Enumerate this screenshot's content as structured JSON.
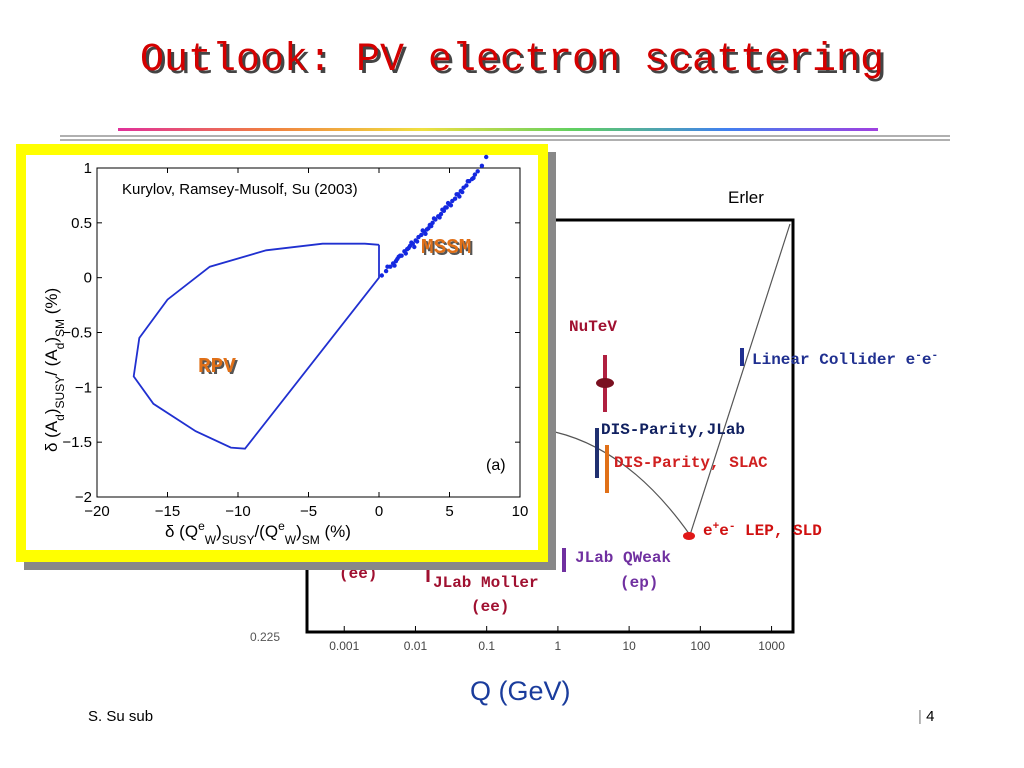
{
  "slide": {
    "title": "Outlook:  PV electron scattering",
    "footer_left": "S. Su  sub",
    "footer_right": "4"
  },
  "colors": {
    "title_red": "#d40000",
    "inset_border_yellow": "#ffff00",
    "points_blue": "#1428e0",
    "contour_blue": "#2030d0",
    "label_orange": "#e07018",
    "label_dark_red": "#a01030",
    "label_purple": "#7030a0",
    "label_blue": "#203090",
    "label_dark": "#102060"
  },
  "background_plot": {
    "credit": "Erler",
    "xlabel": "Q (GeV)",
    "y_tick_label": "0.225",
    "x_scale": "log",
    "xlim": [
      0.0003,
      2000
    ],
    "x_ticks": [
      {
        "v": 0.001,
        "label": "0.001"
      },
      {
        "v": 0.01,
        "label": "0.01"
      },
      {
        "v": 0.1,
        "label": "0.1"
      },
      {
        "v": 1,
        "label": "1"
      },
      {
        "v": 10,
        "label": "10"
      },
      {
        "v": 100,
        "label": "100"
      },
      {
        "v": 1000,
        "label": "1000"
      }
    ],
    "labels": {
      "nutev": "NuTeV",
      "linear_collider": "Linear  Collider e",
      "dis_jlab": "DIS-Parity,JLab",
      "dis_slac": "DIS-Parity, SLAC",
      "lep_sld": "e",
      "lep_sld_rest": " LEP, SLD",
      "jlab_qweak": "JLab QWeak",
      "qweak_ep": "(ep)",
      "jlab_moller": "JLab Moller",
      "moller_ee": "(ee)",
      "e158_ee": "(ee)"
    }
  },
  "chart_data": {
    "type": "scatter",
    "title": "Kurylov, Ramsey-Musolf, Su (2003)",
    "xlabel": "δ (QeW)SUSY/(QeW)SM   (%)",
    "ylabel": "δ (Ad)SUSY/ (Ad)SM    (%)",
    "panel_label": "(a)",
    "xlim": [
      -20,
      10
    ],
    "ylim": [
      -2,
      1
    ],
    "x_ticks": [
      -20,
      -15,
      -10,
      -5,
      0,
      5,
      10
    ],
    "x_tick_labels": [
      "−20",
      "−15",
      "−10",
      "−5",
      "0",
      "5",
      "10"
    ],
    "y_ticks": [
      1,
      0.5,
      0,
      -0.5,
      -1,
      -1.5,
      -2
    ],
    "y_tick_labels": [
      "1",
      "0.5",
      "0",
      "−0.5",
      "−1",
      "−1.5",
      "−2"
    ],
    "grid": false,
    "series": [
      {
        "name": "MSSM",
        "kind": "points",
        "band_x": [
          0,
          7.5
        ],
        "band_y": [
          0,
          1.1
        ],
        "points": [
          [
            0.2,
            0.02
          ],
          [
            0.5,
            0.06
          ],
          [
            0.8,
            0.1
          ],
          [
            1.0,
            0.13
          ],
          [
            1.2,
            0.15
          ],
          [
            1.4,
            0.19
          ],
          [
            1.6,
            0.2
          ],
          [
            1.8,
            0.24
          ],
          [
            2.0,
            0.26
          ],
          [
            2.2,
            0.29
          ],
          [
            2.4,
            0.31
          ],
          [
            2.6,
            0.34
          ],
          [
            2.8,
            0.37
          ],
          [
            3.0,
            0.39
          ],
          [
            3.2,
            0.42
          ],
          [
            3.4,
            0.44
          ],
          [
            3.6,
            0.48
          ],
          [
            3.8,
            0.5
          ],
          [
            4.0,
            0.53
          ],
          [
            4.2,
            0.56
          ],
          [
            4.4,
            0.58
          ],
          [
            4.6,
            0.61
          ],
          [
            4.8,
            0.64
          ],
          [
            5.0,
            0.67
          ],
          [
            5.2,
            0.7
          ],
          [
            5.4,
            0.72
          ],
          [
            5.6,
            0.76
          ],
          [
            5.8,
            0.79
          ],
          [
            6.0,
            0.82
          ],
          [
            6.2,
            0.84
          ],
          [
            6.4,
            0.88
          ],
          [
            6.6,
            0.9
          ],
          [
            6.8,
            0.94
          ],
          [
            7.0,
            0.97
          ],
          [
            7.3,
            1.02
          ],
          [
            7.6,
            1.1
          ],
          [
            0.6,
            0.1
          ],
          [
            1.1,
            0.11
          ],
          [
            1.5,
            0.2
          ],
          [
            1.9,
            0.22
          ],
          [
            2.3,
            0.32
          ],
          [
            2.7,
            0.33
          ],
          [
            3.1,
            0.43
          ],
          [
            3.5,
            0.45
          ],
          [
            3.9,
            0.54
          ],
          [
            4.3,
            0.55
          ],
          [
            4.7,
            0.64
          ],
          [
            5.1,
            0.66
          ],
          [
            5.5,
            0.76
          ],
          [
            5.9,
            0.78
          ],
          [
            6.3,
            0.88
          ],
          [
            6.7,
            0.91
          ],
          [
            2.5,
            0.28
          ],
          [
            3.3,
            0.4
          ],
          [
            4.5,
            0.62
          ],
          [
            5.7,
            0.74
          ],
          [
            1.3,
            0.17
          ],
          [
            2.1,
            0.27
          ],
          [
            3.7,
            0.47
          ],
          [
            4.9,
            0.68
          ]
        ]
      },
      {
        "name": "RPV",
        "kind": "region",
        "boundary": [
          [
            0,
            0.3
          ],
          [
            -1,
            0.31
          ],
          [
            -4,
            0.31
          ],
          [
            -8,
            0.25
          ],
          [
            -12,
            0.1
          ],
          [
            -15,
            -0.2
          ],
          [
            -17,
            -0.55
          ],
          [
            -17.4,
            -0.9
          ],
          [
            -16,
            -1.15
          ],
          [
            -13,
            -1.4
          ],
          [
            -10.5,
            -1.55
          ],
          [
            -9.5,
            -1.56
          ],
          [
            0,
            0.0
          ],
          [
            0,
            0.3
          ]
        ]
      }
    ]
  }
}
